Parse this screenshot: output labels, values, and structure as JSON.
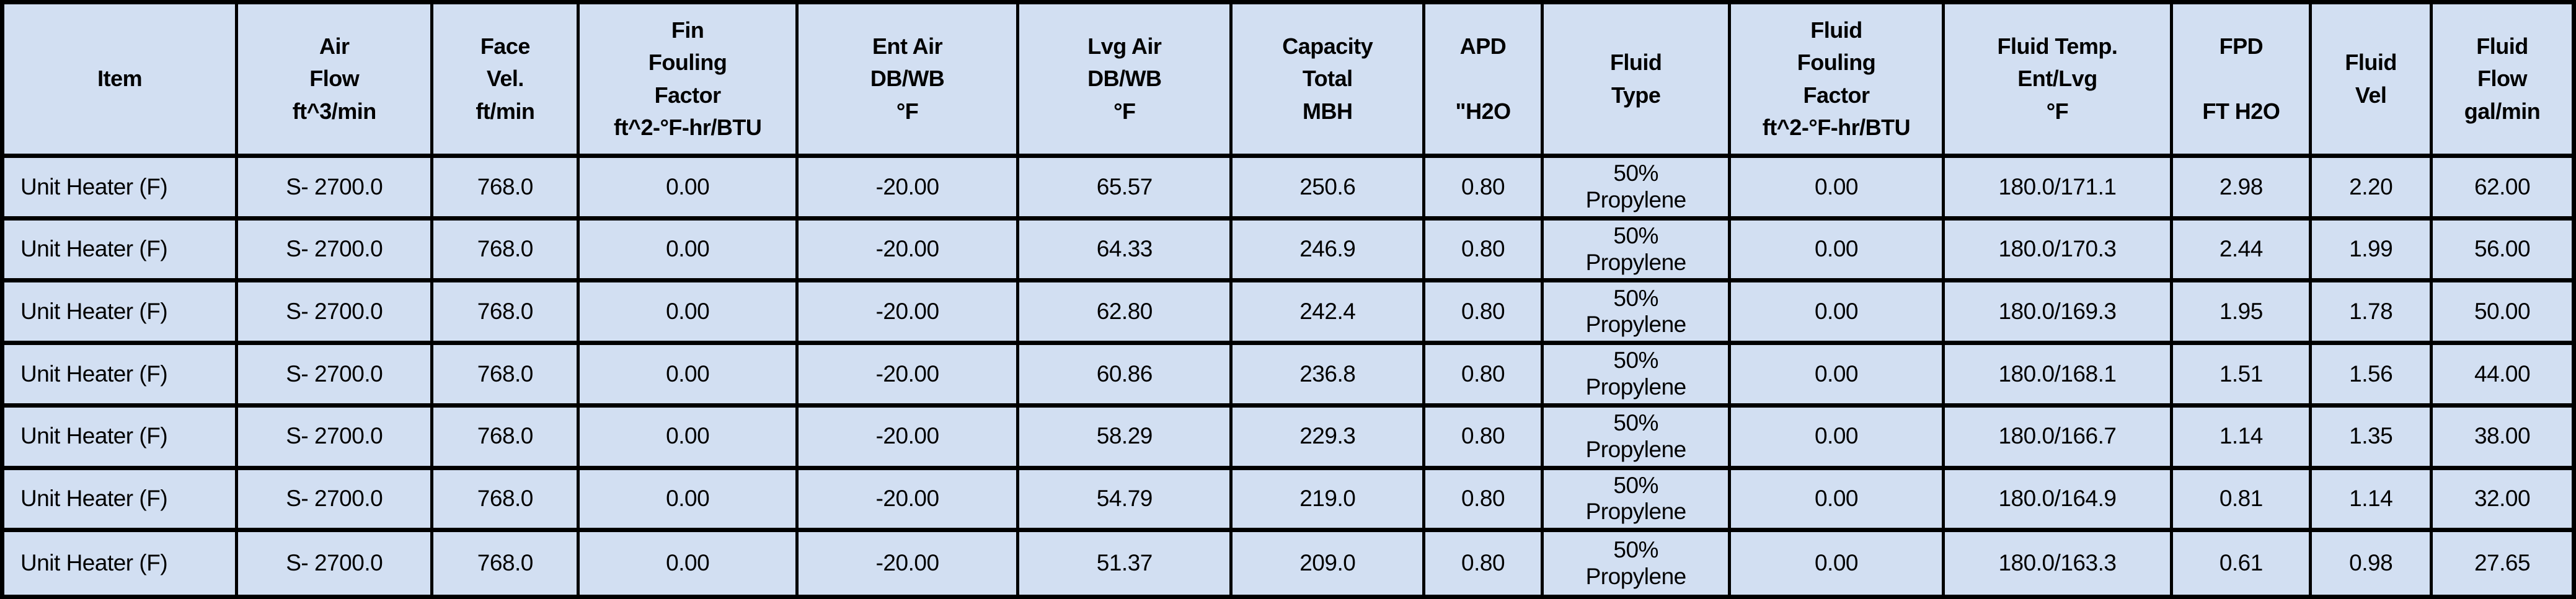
{
  "table": {
    "columns": [
      {
        "id": "item",
        "label": "Item"
      },
      {
        "id": "air-flow",
        "label": "Air\nFlow\nft^3/min"
      },
      {
        "id": "face-vel",
        "label": "Face\nVel.\nft/min"
      },
      {
        "id": "fin-fouling-factor",
        "label": "Fin\nFouling\nFactor\nft^2-°F-hr/BTU"
      },
      {
        "id": "ent-air",
        "label": "Ent Air\nDB/WB\n°F"
      },
      {
        "id": "lvg-air",
        "label": "Lvg Air\nDB/WB\n°F"
      },
      {
        "id": "capacity-total",
        "label": "Capacity\nTotal\nMBH"
      },
      {
        "id": "apd",
        "label": "APD\n\n\"H2O"
      },
      {
        "id": "fluid-type",
        "label": "Fluid\nType"
      },
      {
        "id": "fluid-fouling-factor",
        "label": "Fluid\nFouling\nFactor\nft^2-°F-hr/BTU"
      },
      {
        "id": "fluid-temp",
        "label": "Fluid Temp.\nEnt/Lvg\n°F"
      },
      {
        "id": "fpd",
        "label": "FPD\n\nFT H2O"
      },
      {
        "id": "fluid-vel",
        "label": "Fluid\nVel"
      },
      {
        "id": "fluid-flow",
        "label": "Fluid\nFlow\ngal/min"
      }
    ],
    "rows": [
      [
        "Unit Heater (F)",
        "S- 2700.0",
        "768.0",
        "0.00",
        "-20.00",
        "65.57",
        "250.6",
        "0.80",
        "50%\nPropylene",
        "0.00",
        "180.0/171.1",
        "2.98",
        "2.20",
        "62.00"
      ],
      [
        "Unit Heater (F)",
        "S- 2700.0",
        "768.0",
        "0.00",
        "-20.00",
        "64.33",
        "246.9",
        "0.80",
        "50%\nPropylene",
        "0.00",
        "180.0/170.3",
        "2.44",
        "1.99",
        "56.00"
      ],
      [
        "Unit Heater (F)",
        "S- 2700.0",
        "768.0",
        "0.00",
        "-20.00",
        "62.80",
        "242.4",
        "0.80",
        "50%\nPropylene",
        "0.00",
        "180.0/169.3",
        "1.95",
        "1.78",
        "50.00"
      ],
      [
        "Unit Heater (F)",
        "S- 2700.0",
        "768.0",
        "0.00",
        "-20.00",
        "60.86",
        "236.8",
        "0.80",
        "50%\nPropylene",
        "0.00",
        "180.0/168.1",
        "1.51",
        "1.56",
        "44.00"
      ],
      [
        "Unit Heater (F)",
        "S- 2700.0",
        "768.0",
        "0.00",
        "-20.00",
        "58.29",
        "229.3",
        "0.80",
        "50%\nPropylene",
        "0.00",
        "180.0/166.7",
        "1.14",
        "1.35",
        "38.00"
      ],
      [
        "Unit Heater (F)",
        "S- 2700.0",
        "768.0",
        "0.00",
        "-20.00",
        "54.79",
        "219.0",
        "0.80",
        "50%\nPropylene",
        "0.00",
        "180.0/164.9",
        "0.81",
        "1.14",
        "32.00"
      ],
      [
        "Unit Heater (F)",
        "S- 2700.0",
        "768.0",
        "0.00",
        "-20.00",
        "51.37",
        "209.0",
        "0.80",
        "50%\nPropylene",
        "0.00",
        "180.0/163.3",
        "0.61",
        "0.98",
        "27.65"
      ]
    ]
  },
  "colors": {
    "cell_background": "#d2dff2",
    "grid_border": "#000000",
    "text": "#000000"
  }
}
